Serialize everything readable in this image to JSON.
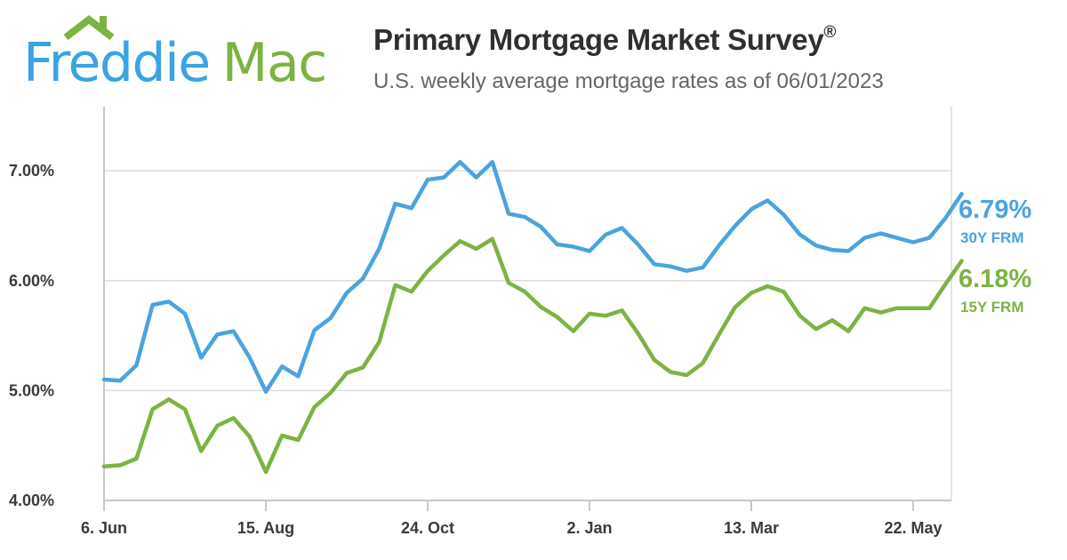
{
  "logo": {
    "word1": "Freddie",
    "word2": "Mac"
  },
  "header": {
    "title": "Primary Mortgage Market Survey",
    "title_mark": "®",
    "subtitle": "U.S. weekly average mortgage rates as of 06/01/2023"
  },
  "colors": {
    "frm30": "#4aa3df",
    "frm15": "#7cb342",
    "grid": "#dcdcdc",
    "axis": "#c8c8c8"
  },
  "chart_data": {
    "type": "line",
    "ylim": [
      4.0,
      7.6
    ],
    "y_ticks": [
      {
        "value": 4.0,
        "label": "4.00%"
      },
      {
        "value": 5.0,
        "label": "5.00%"
      },
      {
        "value": 6.0,
        "label": "6.00%"
      },
      {
        "value": 7.0,
        "label": "7.00%"
      }
    ],
    "x_ticks": [
      {
        "index": 0,
        "label": "6. Jun"
      },
      {
        "index": 10,
        "label": "15. Aug"
      },
      {
        "index": 20,
        "label": "24. Oct"
      },
      {
        "index": 30,
        "label": "2. Jan"
      },
      {
        "index": 40,
        "label": "13. Mar"
      },
      {
        "index": 50,
        "label": "22. May"
      }
    ],
    "grid": "horizontal",
    "series": [
      {
        "name": "30Y FRM",
        "end_label": "6.79%",
        "values": [
          5.1,
          5.09,
          5.23,
          5.78,
          5.81,
          5.7,
          5.3,
          5.51,
          5.54,
          5.3,
          4.99,
          5.22,
          5.13,
          5.55,
          5.66,
          5.89,
          6.02,
          6.29,
          6.7,
          6.66,
          6.92,
          6.94,
          7.08,
          6.94,
          7.08,
          6.61,
          6.58,
          6.49,
          6.33,
          6.31,
          6.27,
          6.42,
          6.48,
          6.33,
          6.15,
          6.13,
          6.09,
          6.12,
          6.32,
          6.5,
          6.65,
          6.73,
          6.6,
          6.42,
          6.32,
          6.28,
          6.27,
          6.39,
          6.43,
          6.39,
          6.35,
          6.39,
          6.57,
          6.79
        ]
      },
      {
        "name": "15Y FRM",
        "end_label": "6.18%",
        "values": [
          4.31,
          4.32,
          4.38,
          4.83,
          4.92,
          4.83,
          4.45,
          4.68,
          4.75,
          4.58,
          4.26,
          4.59,
          4.55,
          4.85,
          4.98,
          5.16,
          5.21,
          5.44,
          5.96,
          5.9,
          6.09,
          6.23,
          6.36,
          6.29,
          6.38,
          5.98,
          5.9,
          5.76,
          5.67,
          5.54,
          5.7,
          5.68,
          5.73,
          5.52,
          5.28,
          5.17,
          5.14,
          5.25,
          5.51,
          5.76,
          5.89,
          5.95,
          5.9,
          5.68,
          5.56,
          5.64,
          5.54,
          5.75,
          5.71,
          5.75,
          5.75,
          5.75,
          5.97,
          6.18
        ]
      }
    ]
  }
}
